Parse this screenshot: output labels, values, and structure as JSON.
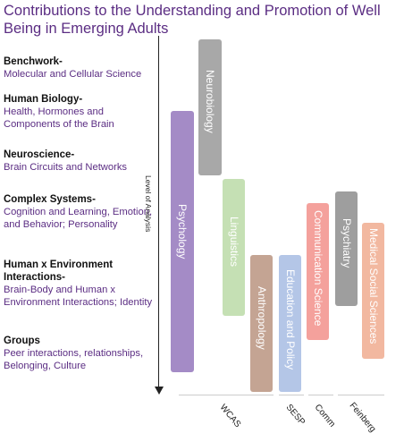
{
  "title": "Contributions to the Understanding and Promotion of Well Being in Emerging Adults",
  "axis_label": "Level of Analysis",
  "levels": [
    {
      "heading": "Benchwork-",
      "description": "Molecular and Cellular Science"
    },
    {
      "heading": "Human Biology-",
      "description": "Health, Hormones and Components of the Brain"
    },
    {
      "heading": "Neuroscience-",
      "description": "Brain Circuits and Networks"
    },
    {
      "heading": "Complex Systems-",
      "description": "Cognition and Learning, Emotion, and Behavior; Personality"
    },
    {
      "heading": "Human x Environment Interactions-",
      "description": "Brain-Body and Human x Environment Interactions; Identity"
    },
    {
      "heading": "Groups",
      "description": "Peer interactions, relationships, Belonging, Culture"
    }
  ],
  "disciplines": [
    {
      "label": "Psychology",
      "color": "#a48bc6"
    },
    {
      "label": "Neurobiology",
      "color": "#a8a8a8"
    },
    {
      "label": "Linguistics",
      "color": "#c5e0b4"
    },
    {
      "label": "Anthropology",
      "color": "#c4a493"
    },
    {
      "label": "Education and Policy",
      "color": "#b4c6e7"
    },
    {
      "label": "Communication Science",
      "color": "#f4a19c"
    },
    {
      "label": "Psychiatry",
      "color": "#9e9e9e"
    },
    {
      "label": "Medical Social Sciences",
      "color": "#f2b8a0"
    }
  ],
  "groups": [
    {
      "label": "WCAS"
    },
    {
      "label": "SESP"
    },
    {
      "label": "Comm"
    },
    {
      "label": "Feinberg"
    }
  ]
}
